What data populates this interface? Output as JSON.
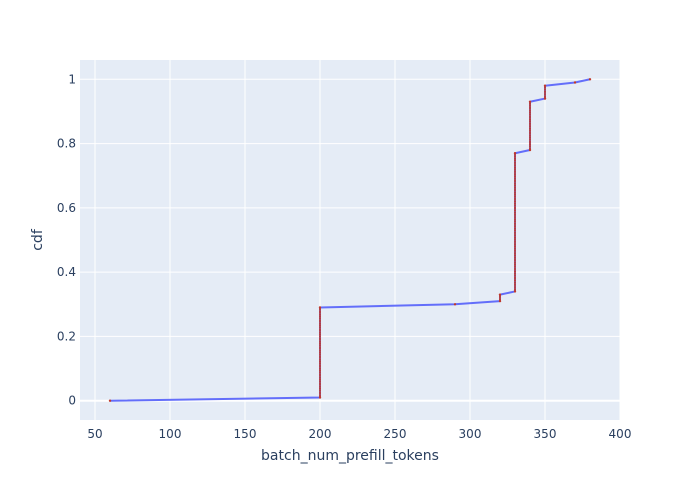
{
  "chart_data": {
    "type": "line",
    "title": "",
    "xlabel": "batch_num_prefill_tokens",
    "ylabel": "cdf",
    "xlim": [
      40,
      400
    ],
    "ylim": [
      -0.06,
      1.06
    ],
    "x_ticks": [
      50,
      100,
      150,
      200,
      250,
      300,
      350,
      400
    ],
    "y_ticks": [
      0,
      0.2,
      0.4,
      0.6,
      0.8,
      1
    ],
    "x_tick_labels": [
      "50",
      "100",
      "150",
      "200",
      "250",
      "300",
      "350",
      "400"
    ],
    "y_tick_labels": [
      "0",
      "0.2",
      "0.4",
      "0.6",
      "0.8",
      "1"
    ],
    "grid": true,
    "colors": {
      "plot_bg": "#e5ecf6",
      "grid": "#ffffff",
      "line": "#636efa",
      "marker": "#c0392b",
      "text": "#2a3f5f"
    },
    "series": [
      {
        "x": [
          60,
          200,
          200,
          290,
          320,
          320,
          330,
          330,
          340,
          340,
          350,
          350,
          370,
          380
        ],
        "y": [
          0,
          0.01,
          0.29,
          0.3,
          0.31,
          0.33,
          0.34,
          0.77,
          0.78,
          0.93,
          0.94,
          0.98,
          0.99,
          1.0
        ]
      }
    ]
  }
}
